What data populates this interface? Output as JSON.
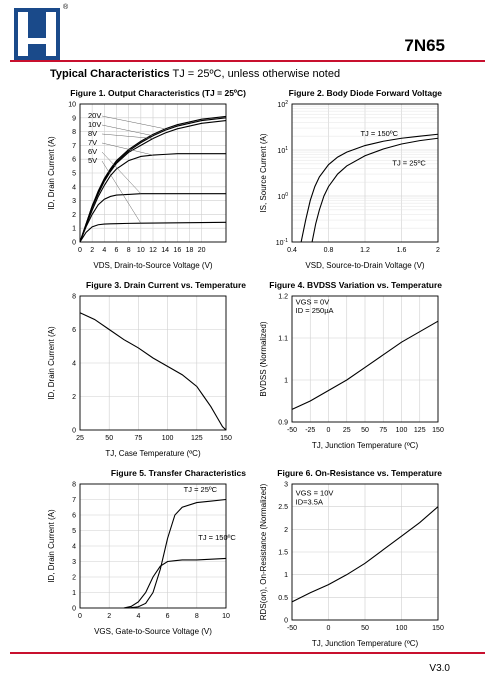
{
  "header": {
    "part_number": "7N65",
    "registered_mark": "®",
    "version": "V3.0"
  },
  "section": {
    "title_bold": "Typical Characteristics",
    "title_rest": " TJ = 25ºC, unless otherwise noted"
  },
  "chart_data": [
    {
      "id": "fig1",
      "type": "line",
      "title": "Figure 1. Output Characteristics (TJ = 25ºC)",
      "xlabel": "VDS, Drain-to-Source Voltage (V)",
      "ylabel": "ID, Drain Current (A)",
      "xlim": [
        0,
        24
      ],
      "ylim": [
        0,
        10
      ],
      "xticks": [
        "0",
        "2",
        "4",
        "6",
        "8",
        "10",
        "12",
        "14",
        "16",
        "18",
        "20"
      ],
      "xtick_values": [
        0,
        2,
        4,
        6,
        8,
        10,
        12,
        14,
        16,
        18,
        20
      ],
      "yticks": [
        "0",
        "1",
        "2",
        "3",
        "4",
        "5",
        "6",
        "7",
        "8",
        "9",
        "10"
      ],
      "ytick_values": [
        0,
        1,
        2,
        3,
        4,
        5,
        6,
        7,
        8,
        9,
        10
      ],
      "legend": [
        "20V",
        "10V",
        "8V",
        "7V",
        "6V",
        "5V"
      ],
      "series": [
        {
          "name": "20V",
          "x": [
            0,
            1,
            2,
            3,
            4,
            5,
            6,
            8,
            10,
            12,
            14,
            16,
            18,
            20,
            22,
            24
          ],
          "y": [
            0,
            1.3,
            2.6,
            3.7,
            4.6,
            5.3,
            5.9,
            6.7,
            7.3,
            7.8,
            8.2,
            8.5,
            8.7,
            8.9,
            9.0,
            9.1
          ]
        },
        {
          "name": "10V",
          "x": [
            0,
            1,
            2,
            3,
            4,
            5,
            6,
            8,
            10,
            12,
            14,
            16,
            18,
            20,
            22,
            24
          ],
          "y": [
            0,
            1.3,
            2.6,
            3.6,
            4.5,
            5.2,
            5.8,
            6.6,
            7.2,
            7.7,
            8.1,
            8.4,
            8.6,
            8.8,
            8.9,
            9.0
          ]
        },
        {
          "name": "8V",
          "x": [
            0,
            1,
            2,
            3,
            4,
            5,
            6,
            8,
            10,
            12,
            14,
            16,
            18,
            20,
            22,
            24
          ],
          "y": [
            0,
            1.3,
            2.5,
            3.5,
            4.4,
            5.1,
            5.7,
            6.5,
            7.0,
            7.5,
            7.9,
            8.2,
            8.4,
            8.6,
            8.7,
            8.8
          ]
        },
        {
          "name": "7V",
          "x": [
            0,
            1,
            2,
            3,
            4,
            5,
            6,
            8,
            10,
            12,
            14,
            16,
            18,
            20,
            22,
            24
          ],
          "y": [
            0,
            1.2,
            2.3,
            3.3,
            4.1,
            4.8,
            5.3,
            5.9,
            6.2,
            6.3,
            6.35,
            6.4,
            6.4,
            6.4,
            6.4,
            6.4
          ]
        },
        {
          "name": "6V",
          "x": [
            0,
            1,
            2,
            3,
            4,
            5,
            6,
            8,
            10,
            12,
            14,
            16,
            18,
            20,
            22,
            24
          ],
          "y": [
            0,
            1.1,
            2.0,
            2.7,
            3.1,
            3.3,
            3.4,
            3.45,
            3.5,
            3.5,
            3.5,
            3.5,
            3.5,
            3.5,
            3.5,
            3.5
          ]
        },
        {
          "name": "5V",
          "x": [
            0,
            1,
            2,
            3,
            4,
            5,
            6,
            8,
            10,
            12,
            14,
            16,
            18,
            20,
            22,
            24
          ],
          "y": [
            0,
            0.7,
            1.1,
            1.25,
            1.3,
            1.32,
            1.33,
            1.35,
            1.36,
            1.37,
            1.38,
            1.39,
            1.4,
            1.41,
            1.42,
            1.43
          ]
        }
      ]
    },
    {
      "id": "fig2",
      "type": "line",
      "yscale": "log",
      "title": "Figure 2. Body Diode Forward Voltage",
      "xlabel": "VSD, Source-to-Drain Voltage (V)",
      "ylabel": "IS, Source Current (A)",
      "xlim": [
        0.4,
        2.0
      ],
      "ylim": [
        0.1,
        100
      ],
      "xticks": [
        "0.4",
        "0.8",
        "1.2",
        "1.6",
        "2"
      ],
      "xtick_values": [
        0.4,
        0.8,
        1.2,
        1.6,
        2.0
      ],
      "yticks": [
        "10-1",
        "100",
        "101",
        "102"
      ],
      "ytick_values": [
        0.1,
        1,
        10,
        100
      ],
      "annotations": [
        "TJ = 150ºC",
        "TJ = 25ºC"
      ],
      "series": [
        {
          "name": "TJ = 150ºC",
          "x": [
            0.5,
            0.55,
            0.6,
            0.65,
            0.7,
            0.8,
            0.9,
            1.0,
            1.2,
            1.4,
            1.6,
            1.8,
            2.0
          ],
          "y": [
            0.1,
            0.3,
            0.8,
            1.6,
            2.6,
            4.8,
            7.0,
            9.0,
            12.5,
            15.5,
            18.0,
            20.0,
            22.0
          ]
        },
        {
          "name": "TJ = 25ºC",
          "x": [
            0.62,
            0.66,
            0.7,
            0.75,
            0.8,
            0.9,
            1.0,
            1.2,
            1.4,
            1.6,
            1.8,
            2.0
          ],
          "y": [
            0.1,
            0.25,
            0.5,
            1.0,
            1.6,
            3.0,
            4.5,
            7.5,
            10.5,
            13.5,
            16.0,
            18.0
          ]
        }
      ]
    },
    {
      "id": "fig3",
      "type": "line",
      "title": "Figure 3. Drain Current vs. Temperature",
      "xlabel": "TJ, Case Temperature (ºC)",
      "ylabel": "ID, Drain Current (A)",
      "xlim": [
        25,
        150
      ],
      "ylim": [
        0,
        8
      ],
      "xticks": [
        "25",
        "50",
        "75",
        "100",
        "125",
        "150"
      ],
      "xtick_values": [
        25,
        50,
        75,
        100,
        125,
        150
      ],
      "yticks": [
        "0",
        "2",
        "4",
        "6",
        "8"
      ],
      "ytick_values": [
        0,
        2,
        4,
        6,
        8
      ],
      "series": [
        {
          "name": "",
          "x": [
            25,
            37.5,
            50,
            62.5,
            75,
            87.5,
            100,
            112.5,
            125,
            131,
            137,
            142,
            147,
            150
          ],
          "y": [
            7.0,
            6.6,
            6.0,
            5.4,
            4.9,
            4.3,
            3.8,
            3.3,
            2.6,
            2.0,
            1.4,
            0.8,
            0.2,
            0
          ]
        }
      ]
    },
    {
      "id": "fig4",
      "type": "line",
      "title": "Figure 4. BVDSS Variation vs. Temperature",
      "xlabel": "TJ, Junction Temperature (ºC)",
      "ylabel": "BVDSS (Normalized)",
      "xlim": [
        -50,
        150
      ],
      "ylim": [
        0.9,
        1.2
      ],
      "xticks": [
        "-50",
        "-25",
        "0",
        "25",
        "50",
        "75",
        "100",
        "125",
        "150"
      ],
      "xtick_values": [
        -50,
        -25,
        0,
        25,
        50,
        75,
        100,
        125,
        150
      ],
      "yticks": [
        "0.9",
        "1",
        "1.1",
        "1.2"
      ],
      "ytick_values": [
        0.9,
        1.0,
        1.1,
        1.2
      ],
      "annotations": [
        "VGS = 0V",
        "ID = 250µA"
      ],
      "series": [
        {
          "name": "",
          "x": [
            -50,
            -25,
            0,
            25,
            50,
            75,
            100,
            125,
            150
          ],
          "y": [
            0.93,
            0.95,
            0.975,
            1.0,
            1.03,
            1.06,
            1.09,
            1.115,
            1.14
          ]
        }
      ]
    },
    {
      "id": "fig5",
      "type": "line",
      "title": "Figure 5. Transfer Characteristics",
      "xlabel": "VGS, Gate-to-Source Voltage (V)",
      "ylabel": "ID, Drain Current (A)",
      "xlim": [
        0,
        10
      ],
      "ylim": [
        0,
        8
      ],
      "xticks": [
        "0",
        "2",
        "4",
        "6",
        "8",
        "10"
      ],
      "xtick_values": [
        0,
        2,
        4,
        6,
        8,
        10
      ],
      "yticks": [
        "0",
        "1",
        "2",
        "3",
        "4",
        "5",
        "6",
        "7",
        "8"
      ],
      "ytick_values": [
        0,
        1,
        2,
        3,
        4,
        5,
        6,
        7,
        8
      ],
      "annotations": [
        "TJ = 25ºC",
        "TJ = 150ºC"
      ],
      "series": [
        {
          "name": "TJ = 25ºC",
          "x": [
            3,
            3.5,
            4,
            4.5,
            5,
            5.5,
            6,
            6.5,
            7,
            8,
            9,
            10
          ],
          "y": [
            0,
            0.02,
            0.08,
            0.3,
            1.0,
            2.5,
            4.5,
            6.0,
            6.5,
            6.8,
            6.9,
            7.0
          ]
        },
        {
          "name": "TJ = 150ºC",
          "x": [
            3,
            3.5,
            4,
            4.5,
            5,
            5.5,
            6,
            6.5,
            7,
            8,
            9,
            10
          ],
          "y": [
            0,
            0.1,
            0.4,
            1.0,
            2.0,
            2.7,
            3.0,
            3.05,
            3.1,
            3.1,
            3.15,
            3.2
          ]
        }
      ]
    },
    {
      "id": "fig6",
      "type": "line",
      "title": "Figure 6. On-Resistance vs. Temperature",
      "xlabel": "TJ, Junction Temperature (ºC)",
      "ylabel": "RDS(on), On-Resistance (Normalized)",
      "xlim": [
        -50,
        150
      ],
      "ylim": [
        0,
        3
      ],
      "xticks": [
        "-50",
        "0",
        "50",
        "100",
        "150"
      ],
      "xtick_values": [
        -50,
        0,
        50,
        100,
        150
      ],
      "yticks": [
        "0",
        "0.5",
        "1",
        "1.5",
        "2",
        "2.5",
        "3"
      ],
      "ytick_values": [
        0,
        0.5,
        1.0,
        1.5,
        2.0,
        2.5,
        3.0
      ],
      "annotations": [
        "VGS = 10V",
        "ID=3.5A"
      ],
      "series": [
        {
          "name": "",
          "x": [
            -50,
            -25,
            0,
            25,
            50,
            75,
            100,
            125,
            150
          ],
          "y": [
            0.4,
            0.6,
            0.78,
            1.0,
            1.25,
            1.55,
            1.85,
            2.15,
            2.5
          ]
        }
      ]
    }
  ],
  "palette": {
    "accent_line": "#c8102e",
    "logo_blue": "#1a4a8a"
  }
}
